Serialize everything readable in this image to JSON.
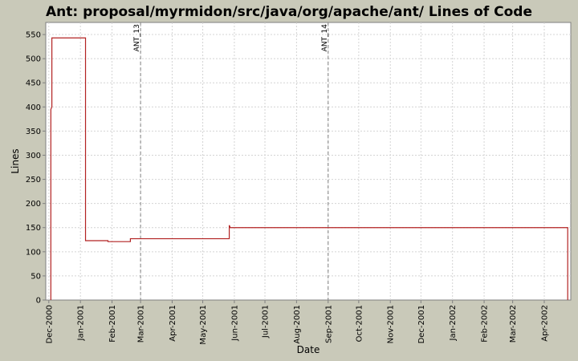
{
  "chart_data": {
    "type": "line",
    "title": "Ant: proposal/myrmidon/src/java/org/apache/ant/ Lines of Code",
    "xlabel": "Date",
    "ylabel": "Lines",
    "ylim": [
      0,
      575
    ],
    "xlim": [
      "2000-11-28",
      "2002-04-27"
    ],
    "y_ticks": [
      0,
      50,
      100,
      150,
      200,
      250,
      300,
      350,
      400,
      450,
      500,
      550
    ],
    "x_ticks": [
      {
        "date": "2000-12-01",
        "label": "Dec-2000"
      },
      {
        "date": "2001-01-01",
        "label": "Jan-2001"
      },
      {
        "date": "2001-02-01",
        "label": "Feb-2001"
      },
      {
        "date": "2001-03-01",
        "label": "Mar-2001"
      },
      {
        "date": "2001-04-01",
        "label": "Apr-2001"
      },
      {
        "date": "2001-05-01",
        "label": "May-2001"
      },
      {
        "date": "2001-06-01",
        "label": "Jun-2001"
      },
      {
        "date": "2001-07-01",
        "label": "Jul-2001"
      },
      {
        "date": "2001-08-01",
        "label": "Aug-2001"
      },
      {
        "date": "2001-09-01",
        "label": "Sep-2001"
      },
      {
        "date": "2001-10-01",
        "label": "Oct-2001"
      },
      {
        "date": "2001-11-01",
        "label": "Nov-2001"
      },
      {
        "date": "2001-12-01",
        "label": "Dec-2001"
      },
      {
        "date": "2002-01-01",
        "label": "Jan-2002"
      },
      {
        "date": "2002-02-01",
        "label": "Feb-2002"
      },
      {
        "date": "2002-03-01",
        "label": "Mar-2002"
      },
      {
        "date": "2002-04-01",
        "label": "Apr-2002"
      }
    ],
    "markers": [
      {
        "date": "2001-03-01",
        "label": "ANT_13"
      },
      {
        "date": "2001-09-01",
        "label": "ANT_14"
      }
    ],
    "grid": true,
    "series": [
      {
        "color": "#b22222",
        "points": [
          [
            "2000-12-03",
            0
          ],
          [
            "2000-12-03",
            395
          ],
          [
            "2000-12-04",
            400
          ],
          [
            "2000-12-04",
            543
          ],
          [
            "2001-01-06",
            543
          ],
          [
            "2001-01-06",
            123
          ],
          [
            "2001-01-28",
            123
          ],
          [
            "2001-01-28",
            121
          ],
          [
            "2001-02-19",
            121
          ],
          [
            "2001-02-19",
            127
          ],
          [
            "2001-05-27",
            127
          ],
          [
            "2001-05-27",
            155
          ],
          [
            "2001-05-28",
            150
          ],
          [
            "2002-04-24",
            150
          ],
          [
            "2002-04-24",
            0
          ]
        ]
      }
    ]
  },
  "colors": {
    "background": "#c9c9b9",
    "plot_background": "#ffffff",
    "grid": "#d4d4d4",
    "marker_line": "#808080",
    "series": "#b22222"
  }
}
